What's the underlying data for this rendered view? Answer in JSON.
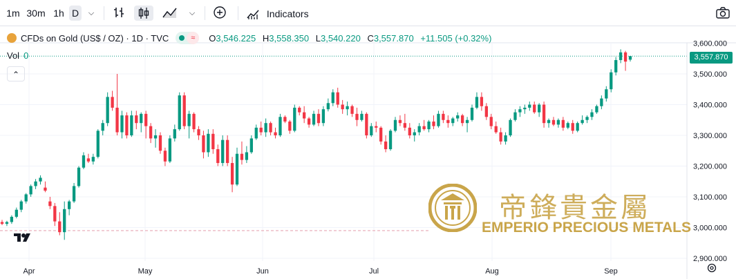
{
  "toolbar": {
    "intervals": [
      "1m",
      "30m",
      "1h",
      "D"
    ],
    "indicators_label": "Indicators"
  },
  "legend": {
    "symbol": "CFDs on Gold (US$ / OZ) · 1D · TVC",
    "open_label": "O",
    "open": "3,546.225",
    "high_label": "H",
    "high": "3,558.350",
    "low_label": "L",
    "low": "3,540.220",
    "close_label": "C",
    "close": "3,557.870",
    "change": "+11.505 (+0.32%)"
  },
  "volume": {
    "label": "Vol",
    "value": "0"
  },
  "current_price_tag": "3,557.870",
  "watermark": {
    "chinese": "帝鋒貴金屬",
    "english": "EMPERIO PRECIOUS METALS"
  },
  "colors": {
    "up": "#089981",
    "down": "#f23645",
    "watermark": "#c9a54a"
  },
  "chart_data": {
    "type": "candlestick",
    "y_ticks": [
      "3,600.000",
      "3,500.000",
      "3,400.000",
      "3,300.000",
      "3,200.000",
      "3,100.000",
      "3,000.000",
      "2,900.000"
    ],
    "ylim": [
      2900,
      3610
    ],
    "x_ticks": [
      "Apr",
      "May",
      "Jun",
      "Jul",
      "Aug",
      "Sep"
    ],
    "reference_line": 2990,
    "current_price": 3557.87,
    "candles": [
      [
        3018,
        3025,
        3008,
        3012
      ],
      [
        3012,
        3022,
        3005,
        3018
      ],
      [
        3018,
        3040,
        3012,
        3035
      ],
      [
        3035,
        3065,
        3030,
        3058
      ],
      [
        3058,
        3090,
        3050,
        3085
      ],
      [
        3085,
        3112,
        3078,
        3108
      ],
      [
        3108,
        3140,
        3100,
        3135
      ],
      [
        3135,
        3158,
        3125,
        3150
      ],
      [
        3150,
        3170,
        3140,
        3162
      ],
      [
        3130,
        3150,
        3115,
        3120
      ],
      [
        3085,
        3100,
        3060,
        3070
      ],
      [
        3070,
        3080,
        3005,
        3020
      ],
      [
        3020,
        3050,
        2975,
        2985
      ],
      [
        2985,
        3085,
        2960,
        3060
      ],
      [
        3060,
        3090,
        3040,
        3085
      ],
      [
        3085,
        3145,
        3080,
        3135
      ],
      [
        3135,
        3200,
        3130,
        3195
      ],
      [
        3195,
        3245,
        3190,
        3235
      ],
      [
        3225,
        3240,
        3210,
        3215
      ],
      [
        3215,
        3240,
        3205,
        3230
      ],
      [
        3230,
        3320,
        3225,
        3315
      ],
      [
        3315,
        3350,
        3300,
        3340
      ],
      [
        3340,
        3440,
        3330,
        3425
      ],
      [
        3425,
        3445,
        3380,
        3390
      ],
      [
        3390,
        3500,
        3300,
        3310
      ],
      [
        3310,
        3380,
        3290,
        3365
      ],
      [
        3365,
        3375,
        3290,
        3300
      ],
      [
        3300,
        3380,
        3295,
        3365
      ],
      [
        3365,
        3380,
        3320,
        3340
      ],
      [
        3340,
        3375,
        3310,
        3370
      ],
      [
        3370,
        3380,
        3290,
        3330
      ],
      [
        3330,
        3340,
        3275,
        3290
      ],
      [
        3290,
        3320,
        3260,
        3300
      ],
      [
        3300,
        3310,
        3240,
        3250
      ],
      [
        3250,
        3260,
        3200,
        3215
      ],
      [
        3215,
        3300,
        3210,
        3290
      ],
      [
        3290,
        3335,
        3280,
        3320
      ],
      [
        3320,
        3440,
        3315,
        3430
      ],
      [
        3430,
        3440,
        3320,
        3330
      ],
      [
        3330,
        3380,
        3290,
        3370
      ],
      [
        3370,
        3375,
        3310,
        3320
      ],
      [
        3320,
        3330,
        3285,
        3300
      ],
      [
        3300,
        3315,
        3225,
        3245
      ],
      [
        3245,
        3320,
        3230,
        3305
      ],
      [
        3305,
        3320,
        3240,
        3255
      ],
      [
        3255,
        3270,
        3200,
        3210
      ],
      [
        3210,
        3300,
        3200,
        3285
      ],
      [
        3285,
        3300,
        3200,
        3210
      ],
      [
        3210,
        3230,
        3115,
        3140
      ],
      [
        3140,
        3260,
        3135,
        3240
      ],
      [
        3240,
        3280,
        3205,
        3220
      ],
      [
        3220,
        3265,
        3210,
        3245
      ],
      [
        3245,
        3300,
        3240,
        3290
      ],
      [
        3290,
        3335,
        3285,
        3325
      ],
      [
        3325,
        3345,
        3300,
        3310
      ],
      [
        3310,
        3355,
        3295,
        3340
      ],
      [
        3340,
        3345,
        3300,
        3310
      ],
      [
        3310,
        3325,
        3290,
        3300
      ],
      [
        3300,
        3370,
        3295,
        3360
      ],
      [
        3360,
        3365,
        3340,
        3345
      ],
      [
        3345,
        3350,
        3305,
        3315
      ],
      [
        3315,
        3400,
        3310,
        3390
      ],
      [
        3390,
        3395,
        3365,
        3375
      ],
      [
        3375,
        3395,
        3340,
        3355
      ],
      [
        3355,
        3360,
        3325,
        3335
      ],
      [
        3335,
        3380,
        3330,
        3370
      ],
      [
        3370,
        3385,
        3330,
        3340
      ],
      [
        3340,
        3395,
        3330,
        3385
      ],
      [
        3385,
        3420,
        3378,
        3405
      ],
      [
        3405,
        3450,
        3395,
        3440
      ],
      [
        3440,
        3455,
        3390,
        3400
      ],
      [
        3400,
        3415,
        3370,
        3385
      ],
      [
        3385,
        3410,
        3365,
        3395
      ],
      [
        3395,
        3400,
        3360,
        3370
      ],
      [
        3370,
        3390,
        3330,
        3350
      ],
      [
        3350,
        3380,
        3345,
        3370
      ],
      [
        3370,
        3375,
        3290,
        3300
      ],
      [
        3300,
        3340,
        3295,
        3330
      ],
      [
        3330,
        3345,
        3310,
        3325
      ],
      [
        3325,
        3330,
        3270,
        3280
      ],
      [
        3280,
        3300,
        3245,
        3255
      ],
      [
        3255,
        3320,
        3250,
        3315
      ],
      [
        3315,
        3360,
        3310,
        3350
      ],
      [
        3350,
        3365,
        3330,
        3340
      ],
      [
        3340,
        3370,
        3315,
        3325
      ],
      [
        3325,
        3340,
        3290,
        3300
      ],
      [
        3300,
        3320,
        3280,
        3310
      ],
      [
        3310,
        3340,
        3300,
        3330
      ],
      [
        3330,
        3350,
        3315,
        3320
      ],
      [
        3320,
        3350,
        3310,
        3345
      ],
      [
        3345,
        3365,
        3320,
        3330
      ],
      [
        3330,
        3380,
        3325,
        3370
      ],
      [
        3370,
        3380,
        3340,
        3350
      ],
      [
        3350,
        3365,
        3325,
        3340
      ],
      [
        3340,
        3360,
        3330,
        3355
      ],
      [
        3355,
        3375,
        3345,
        3365
      ],
      [
        3365,
        3370,
        3330,
        3340
      ],
      [
        3340,
        3360,
        3310,
        3350
      ],
      [
        3350,
        3400,
        3345,
        3390
      ],
      [
        3390,
        3440,
        3385,
        3425
      ],
      [
        3425,
        3440,
        3380,
        3395
      ],
      [
        3395,
        3405,
        3350,
        3360
      ],
      [
        3360,
        3370,
        3320,
        3330
      ],
      [
        3330,
        3345,
        3305,
        3310
      ],
      [
        3310,
        3325,
        3270,
        3280
      ],
      [
        3280,
        3310,
        3270,
        3300
      ],
      [
        3300,
        3355,
        3295,
        3350
      ],
      [
        3350,
        3385,
        3345,
        3375
      ],
      [
        3375,
        3395,
        3360,
        3385
      ],
      [
        3385,
        3400,
        3370,
        3390
      ],
      [
        3390,
        3410,
        3380,
        3400
      ],
      [
        3400,
        3410,
        3370,
        3375
      ],
      [
        3375,
        3405,
        3360,
        3400
      ],
      [
        3400,
        3410,
        3325,
        3340
      ],
      [
        3340,
        3355,
        3325,
        3350
      ],
      [
        3350,
        3360,
        3330,
        3335
      ],
      [
        3335,
        3355,
        3325,
        3350
      ],
      [
        3350,
        3360,
        3315,
        3325
      ],
      [
        3325,
        3345,
        3320,
        3340
      ],
      [
        3340,
        3350,
        3305,
        3315
      ],
      [
        3315,
        3345,
        3310,
        3340
      ],
      [
        3340,
        3365,
        3335,
        3350
      ],
      [
        3350,
        3365,
        3340,
        3360
      ],
      [
        3360,
        3385,
        3350,
        3375
      ],
      [
        3375,
        3400,
        3370,
        3395
      ],
      [
        3395,
        3430,
        3385,
        3420
      ],
      [
        3420,
        3460,
        3410,
        3450
      ],
      [
        3450,
        3515,
        3440,
        3505
      ],
      [
        3505,
        3555,
        3495,
        3545
      ],
      [
        3545,
        3580,
        3535,
        3570
      ],
      [
        3570,
        3575,
        3510,
        3540
      ],
      [
        3546.225,
        3558.35,
        3540.22,
        3557.87
      ]
    ]
  }
}
